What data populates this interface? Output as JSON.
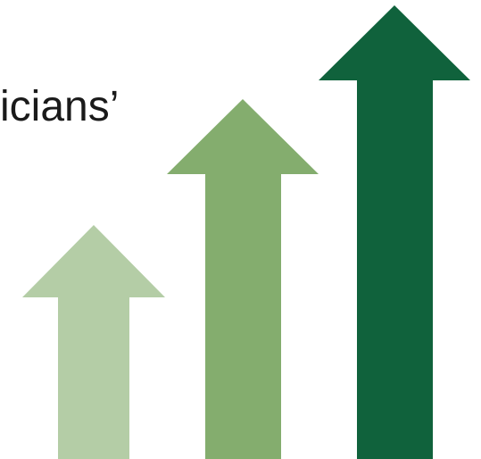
{
  "text_fragment": "icians’",
  "arrows": [
    {
      "name": "small-arrow",
      "color": "#b4cda6"
    },
    {
      "name": "medium-arrow",
      "color": "#84ad6e"
    },
    {
      "name": "large-arrow",
      "color": "#10623c"
    }
  ]
}
